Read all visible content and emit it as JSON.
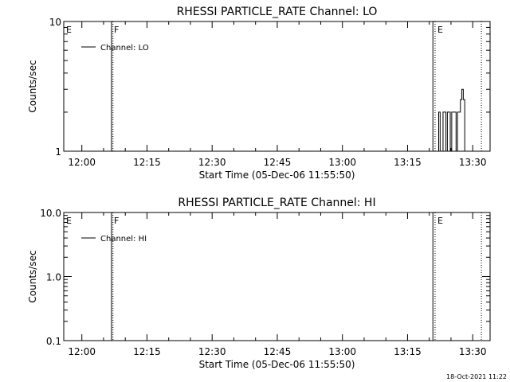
{
  "footer_timestamp": "18-Oct-2021 11:22",
  "chart_data": [
    {
      "type": "line",
      "title": "RHESSI PARTICLE_RATE Channel: LO",
      "xlabel": "Start Time (05-Dec-06 11:55:50)",
      "ylabel": "Counts/sec",
      "x_ticks": [
        "12:00",
        "12:15",
        "12:30",
        "12:45",
        "13:00",
        "13:15",
        "13:30"
      ],
      "y_scale": "log",
      "ylim": [
        1,
        10
      ],
      "y_ticks": [
        "1",
        "10"
      ],
      "xlim": [
        "11:55:50",
        "13:34:00"
      ],
      "legend": "Channel: LO",
      "legend_position": "top-left",
      "series": [
        {
          "name": "Channel: LO",
          "x": [
            "13:21:30",
            "13:21:50",
            "13:22:10",
            "13:22:30",
            "13:22:50",
            "13:23:10",
            "13:23:30",
            "13:23:50",
            "13:24:10",
            "13:24:30",
            "13:24:50",
            "13:25:10",
            "13:25:30",
            "13:25:50",
            "13:26:10",
            "13:26:30",
            "13:26:50",
            "13:27:10",
            "13:27:30",
            "13:27:50",
            "13:28:10"
          ],
          "values": [
            1,
            1,
            2,
            1,
            1,
            2,
            2,
            1,
            2,
            2,
            1,
            2,
            2,
            2,
            1,
            2,
            2,
            2.5,
            3,
            2.5,
            1
          ]
        }
      ],
      "markers": [
        {
          "label": "E",
          "time": "11:55:50",
          "style": "none"
        },
        {
          "label": "F",
          "time": "12:06:50",
          "style": "solid"
        },
        {
          "label": "",
          "time": "12:07:10",
          "style": "dotted"
        },
        {
          "label": "",
          "time": "13:20:50",
          "style": "solid"
        },
        {
          "label": "E",
          "time": "13:21:20",
          "style": "dotted"
        },
        {
          "label": "",
          "time": "13:32:00",
          "style": "dotted"
        }
      ]
    },
    {
      "type": "line",
      "title": "RHESSI PARTICLE_RATE Channel: HI",
      "xlabel": "Start Time (05-Dec-06 11:55:50)",
      "ylabel": "Counts/sec",
      "x_ticks": [
        "12:00",
        "12:15",
        "12:30",
        "12:45",
        "13:00",
        "13:15",
        "13:30"
      ],
      "y_scale": "log",
      "ylim": [
        0.1,
        10
      ],
      "y_ticks": [
        "0.1",
        "1.0",
        "10.0"
      ],
      "xlim": [
        "11:55:50",
        "13:34:00"
      ],
      "legend": "Channel: HI",
      "legend_position": "top-left",
      "series": [
        {
          "name": "Channel: HI",
          "x": [],
          "values": []
        }
      ],
      "markers": [
        {
          "label": "E",
          "time": "11:55:50",
          "style": "none"
        },
        {
          "label": "F",
          "time": "12:06:50",
          "style": "solid"
        },
        {
          "label": "",
          "time": "12:07:10",
          "style": "dotted"
        },
        {
          "label": "",
          "time": "13:20:50",
          "style": "solid"
        },
        {
          "label": "E",
          "time": "13:21:20",
          "style": "dotted"
        },
        {
          "label": "",
          "time": "13:32:00",
          "style": "dotted"
        }
      ]
    }
  ]
}
